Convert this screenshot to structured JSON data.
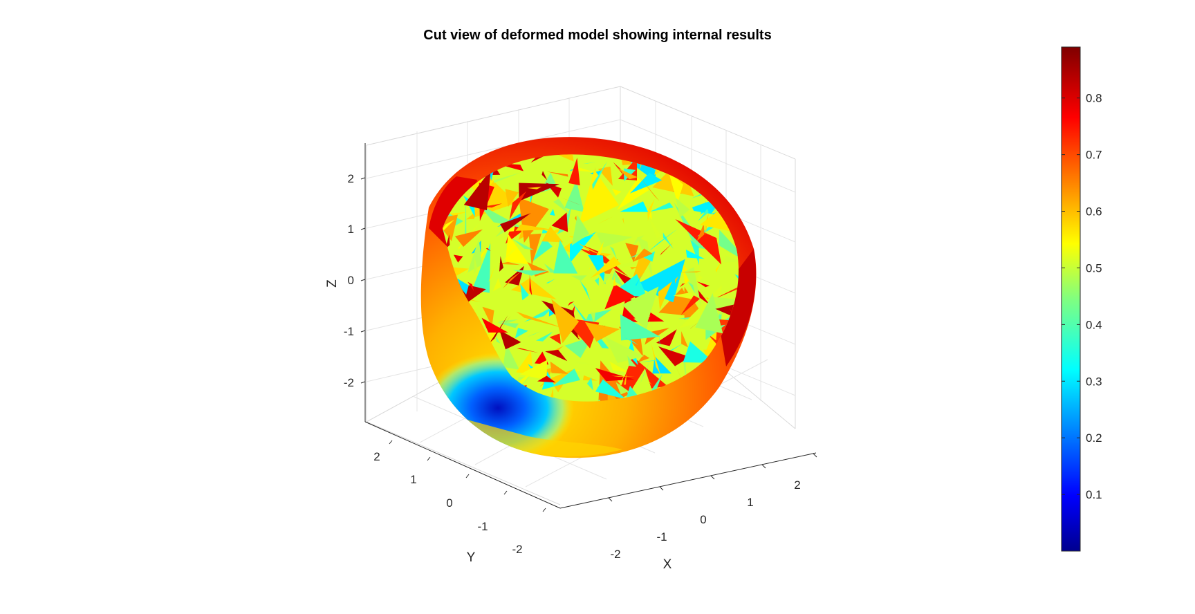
{
  "chart_data": {
    "type": "surface3d",
    "title": "Cut view of deformed model showing internal results",
    "xlabel": "X",
    "ylabel": "Y",
    "zlabel": "Z",
    "x_ticks": [
      "-2",
      "-1",
      "0",
      "1",
      "2"
    ],
    "y_ticks": [
      "-2",
      "-1",
      "0",
      "1",
      "2"
    ],
    "z_ticks": [
      "-2",
      "-1",
      "0",
      "1",
      "2"
    ],
    "xlim": [
      -2.5,
      2.5
    ],
    "ylim": [
      -2.5,
      2.5
    ],
    "zlim": [
      -2.8,
      2.8
    ],
    "grid": true,
    "colormap": "jet",
    "colorbar": {
      "location": "right",
      "clim": [
        0.0,
        0.89
      ],
      "ticks": [
        "0.1",
        "0.2",
        "0.3",
        "0.4",
        "0.5",
        "0.6",
        "0.7",
        "0.8"
      ],
      "tick_values": [
        0.1,
        0.2,
        0.3,
        0.4,
        0.5,
        0.6,
        0.7,
        0.8
      ]
    },
    "value_summary": {
      "outer_shell_range": [
        0.6,
        0.89
      ],
      "internal_cut_range": [
        0.3,
        0.85
      ],
      "minimum_region_value": 0.0
    }
  }
}
